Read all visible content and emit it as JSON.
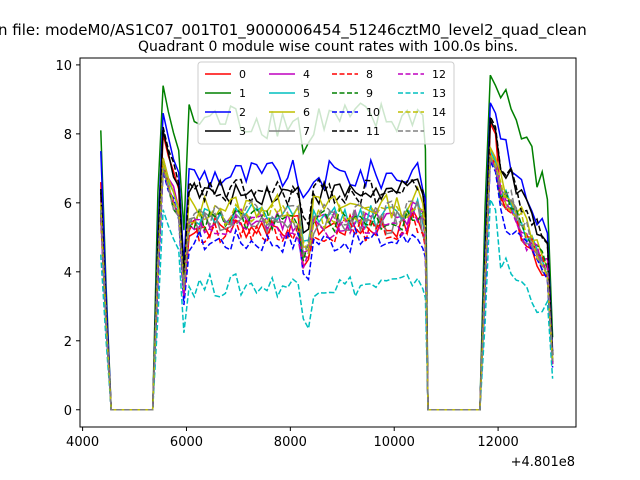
{
  "chart_data": {
    "type": "line",
    "suptitle": "n file: modeM0/AS1C07_001T01_9000006454_51246cztM0_level2_quad_clean",
    "title": "Quadrant 0 module wise count rates with 100.0s bins.",
    "xlabel": "",
    "ylabel": "",
    "x_offset_label": "+4.801e8",
    "xlim": [
      3950,
      13500
    ],
    "ylim": [
      -0.5,
      10.2
    ],
    "x_ticks": [
      4000,
      6000,
      8000,
      10000,
      12000
    ],
    "x_tick_labels": [
      "4000",
      "6000",
      "8000",
      "10000",
      "12000"
    ],
    "y_ticks": [
      0,
      2,
      4,
      6,
      8,
      10
    ],
    "y_tick_labels": [
      "0",
      "2",
      "4",
      "6",
      "8",
      "10"
    ],
    "grid": false,
    "legend_location": "top-center",
    "series": [
      {
        "name": "0",
        "color": "#ff0000",
        "dash": "solid",
        "level": 5.3,
        "peak": 8.0,
        "noise": 0.35,
        "start": 6.6
      },
      {
        "name": "1",
        "color": "#008000",
        "dash": "solid",
        "level": 8.4,
        "peak": 9.4,
        "noise": 0.55,
        "start": 8.1
      },
      {
        "name": "2",
        "color": "#0000ff",
        "dash": "solid",
        "level": 6.8,
        "peak": 8.6,
        "noise": 0.45,
        "start": 7.5
      },
      {
        "name": "3",
        "color": "#000000",
        "dash": "solid",
        "level": 6.3,
        "peak": 8.1,
        "noise": 0.35,
        "start": 6.3
      },
      {
        "name": "4",
        "color": "#bf00bf",
        "dash": "solid",
        "level": 5.5,
        "peak": 7.3,
        "noise": 0.35,
        "start": 6.1
      },
      {
        "name": "5",
        "color": "#00bfbf",
        "dash": "solid",
        "level": 5.6,
        "peak": 7.2,
        "noise": 0.35,
        "start": 5.8
      },
      {
        "name": "6",
        "color": "#bfbf00",
        "dash": "solid",
        "level": 5.9,
        "peak": 7.3,
        "noise": 0.35,
        "start": 6.0
      },
      {
        "name": "7",
        "color": "#808080",
        "dash": "solid",
        "level": 5.4,
        "peak": 7.0,
        "noise": 0.35,
        "start": 5.9
      },
      {
        "name": "8",
        "color": "#ff0000",
        "dash": "dashed",
        "level": 5.2,
        "peak": 7.1,
        "noise": 0.35,
        "start": 5.5
      },
      {
        "name": "9",
        "color": "#008000",
        "dash": "dashed",
        "level": 5.5,
        "peak": 7.0,
        "noise": 0.35,
        "start": 5.7
      },
      {
        "name": "10",
        "color": "#0000ff",
        "dash": "dashed",
        "level": 4.9,
        "peak": 6.9,
        "noise": 0.35,
        "start": 5.6
      },
      {
        "name": "11",
        "color": "#000000",
        "dash": "dashed",
        "level": 6.3,
        "peak": 8.2,
        "noise": 0.4,
        "start": 6.4
      },
      {
        "name": "12",
        "color": "#bf00bf",
        "dash": "dashed",
        "level": 5.3,
        "peak": 7.0,
        "noise": 0.35,
        "start": 5.6
      },
      {
        "name": "13",
        "color": "#00bfbf",
        "dash": "dashed",
        "level": 3.6,
        "peak": 5.8,
        "noise": 0.35,
        "start": 4.5
      },
      {
        "name": "14",
        "color": "#bfbf00",
        "dash": "dashed",
        "level": 5.6,
        "peak": 7.1,
        "noise": 0.35,
        "start": 5.9
      },
      {
        "name": "15",
        "color": "#808080",
        "dash": "dashed",
        "level": 5.7,
        "peak": 7.0,
        "noise": 0.35,
        "start": 5.8
      }
    ],
    "segments": [
      {
        "x_start": 4350,
        "x_end": 4450,
        "kind": "start"
      },
      {
        "x_start": 4550,
        "x_end": 5350,
        "kind": "zero"
      },
      {
        "x_start": 5450,
        "x_end": 10650,
        "kind": "active"
      },
      {
        "x_start": 10650,
        "x_end": 11650,
        "kind": "zero"
      },
      {
        "x_start": 11750,
        "x_end": 13050,
        "kind": "active"
      }
    ],
    "time_step": 100
  }
}
